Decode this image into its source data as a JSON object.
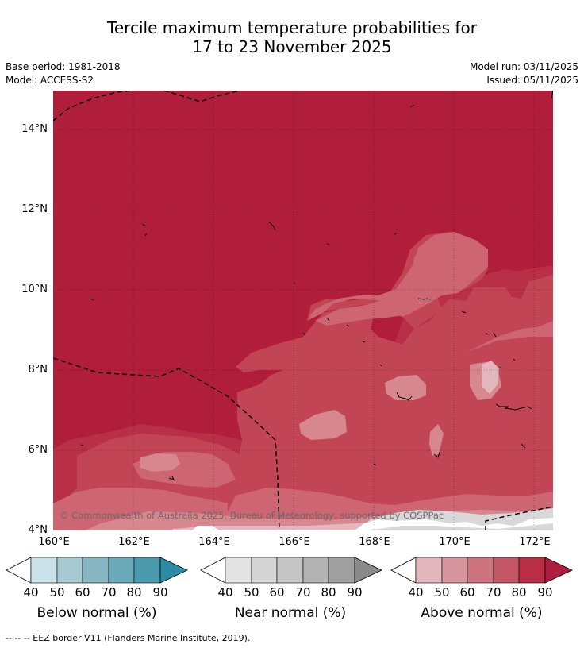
{
  "title_line1": "Tercile maximum temperature probabilities for",
  "title_line2": "17 to 23 November 2025",
  "base_period": "Base period: 1981-2018",
  "model": "Model: ACCESS-S2",
  "model_run": "Model run: 03/11/2025",
  "issued": "Issued: 05/11/2025",
  "copyright": "© Commonwealth of Australia 2025, Bureau of Meteorology, supported by COSPPac",
  "lat_labels": [
    "14°N",
    "12°N",
    "10°N",
    "8°N",
    "6°N",
    "4°N"
  ],
  "lon_labels": [
    "160°E",
    "162°E",
    "164°E",
    "166°E",
    "168°E",
    "170°E",
    "172°E"
  ],
  "colorbars": [
    {
      "name": "below",
      "title": "Below normal (%)",
      "labels": [
        "40",
        "50",
        "60",
        "70",
        "80",
        "90"
      ],
      "colors": [
        "#ffffff",
        "#c9e2e8",
        "#a7cad2",
        "#87b7c3",
        "#6aa9b8",
        "#4b99ad",
        "#2a8ba4"
      ]
    },
    {
      "name": "near",
      "title": "Near normal (%)",
      "labels": [
        "40",
        "50",
        "60",
        "70",
        "80",
        "90"
      ],
      "colors": [
        "#ffffff",
        "#e3e3e3",
        "#d5d5d5",
        "#c6c6c6",
        "#b2b2b2",
        "#a0a0a0",
        "#8a8a8a"
      ]
    },
    {
      "name": "above",
      "title": "Above normal (%)",
      "labels": [
        "40",
        "50",
        "60",
        "70",
        "80",
        "90"
      ],
      "colors": [
        "#ffffff",
        "#e3b6bb",
        "#d7959d",
        "#cd737e",
        "#c45766",
        "#b92d45",
        "#ae1d3d"
      ]
    }
  ],
  "footer": "-- -- -- EEZ border V11 (Flanders Marine Institute, 2019)."
}
